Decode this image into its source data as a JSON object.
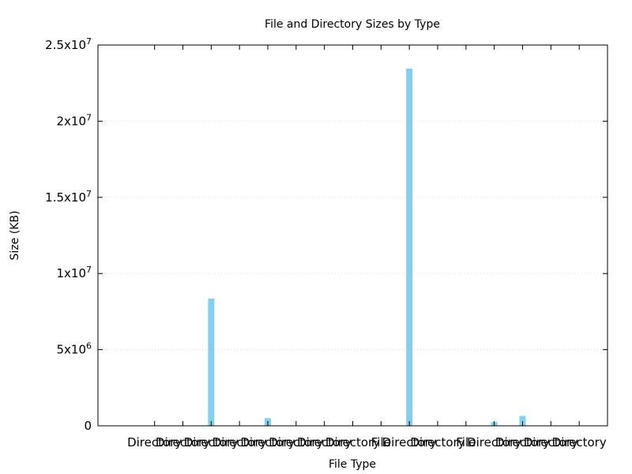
{
  "chart_data": {
    "type": "bar",
    "title": "File and Directory Sizes by Type",
    "xlabel": "File Type",
    "ylabel": "Size (KB)",
    "ylim": [
      0,
      25000000
    ],
    "yticks": [
      {
        "value": 0,
        "mantissa": "0",
        "exp": ""
      },
      {
        "value": 5000000,
        "mantissa": "5x10",
        "exp": "6"
      },
      {
        "value": 10000000,
        "mantissa": "1x10",
        "exp": "7"
      },
      {
        "value": 15000000,
        "mantissa": "1.5x10",
        "exp": "7"
      },
      {
        "value": 20000000,
        "mantissa": "2x10",
        "exp": "7"
      },
      {
        "value": 25000000,
        "mantissa": "2.5x10",
        "exp": "7"
      }
    ],
    "grid": true,
    "categories": [
      "Directory",
      "Directory",
      "Directory",
      "Directory",
      "Directory",
      "Directory",
      "Directory",
      "Directory",
      "File",
      "Directory",
      "Directory",
      "File",
      "Directory",
      "Directory",
      "Directory",
      "Directory"
    ],
    "values": [
      0,
      0,
      8350000,
      0,
      500000,
      0,
      0,
      0,
      0,
      23450000,
      0,
      0,
      250000,
      650000,
      0,
      0
    ],
    "bar_color": "#87ceeb"
  }
}
